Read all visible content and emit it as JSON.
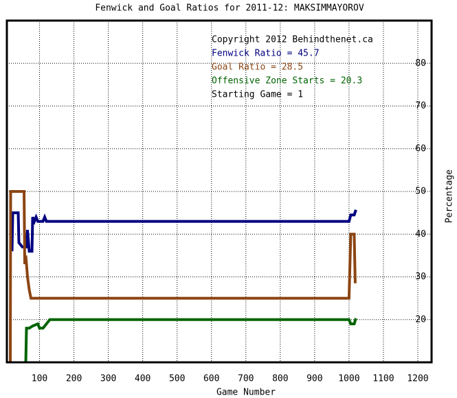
{
  "chart_data": {
    "type": "line",
    "title": "Fenwick and Goal Ratios for 2011-12: MAKSIMMAYOROV",
    "x_label": "Game Number",
    "y_label": "Percentage",
    "annotations": [
      {
        "text": "Copyright 2012 Behindthenet.ca",
        "color": "#000000"
      },
      {
        "text": "Fenwick Ratio = 45.7",
        "color": "#000080"
      },
      {
        "text": "Goal Ratio = 28.5",
        "color": "#8b4513"
      },
      {
        "text": "Offensive Zone Starts = 20.3",
        "color": "#006400"
      },
      {
        "text": "Starting Game = 1",
        "color": "#000000"
      }
    ],
    "xlim": [
      5,
      1240
    ],
    "ylim": [
      10,
      90
    ],
    "xticks": [
      100,
      200,
      300,
      400,
      500,
      600,
      700,
      800,
      900,
      1000,
      1100,
      1200
    ],
    "yticks": [
      20,
      30,
      40,
      50,
      60,
      70,
      80
    ],
    "grid": true,
    "series": [
      {
        "name": "Fenwick Ratio",
        "color": "#000080",
        "x": [
          20,
          22,
          38,
          40,
          50,
          62,
          65,
          70,
          78,
          80,
          85,
          90,
          95,
          100,
          110,
          115,
          120,
          1000,
          1005,
          1015,
          1020
        ],
        "values": [
          36,
          45,
          45,
          38,
          37,
          37,
          41,
          36,
          36,
          44,
          43,
          44,
          43,
          43,
          43,
          44,
          43,
          43,
          44.5,
          44.5,
          45.7
        ]
      },
      {
        "name": "Goal Ratio",
        "color": "#8b4513",
        "x": [
          15,
          16,
          55,
          57,
          60,
          65,
          70,
          75,
          1000,
          1005,
          1015,
          1018
        ],
        "values": [
          10,
          50,
          50,
          33,
          35,
          30,
          27,
          25,
          25,
          40,
          40,
          28.5
        ]
      },
      {
        "name": "Offensive Zone Starts",
        "color": "#006400",
        "x": [
          60,
          62,
          70,
          80,
          95,
          100,
          110,
          120,
          125,
          130,
          1000,
          1005,
          1015,
          1020
        ],
        "values": [
          10,
          18,
          18,
          18.5,
          19,
          18,
          18,
          19,
          19.5,
          20,
          20,
          19,
          19,
          20.3
        ]
      }
    ]
  }
}
